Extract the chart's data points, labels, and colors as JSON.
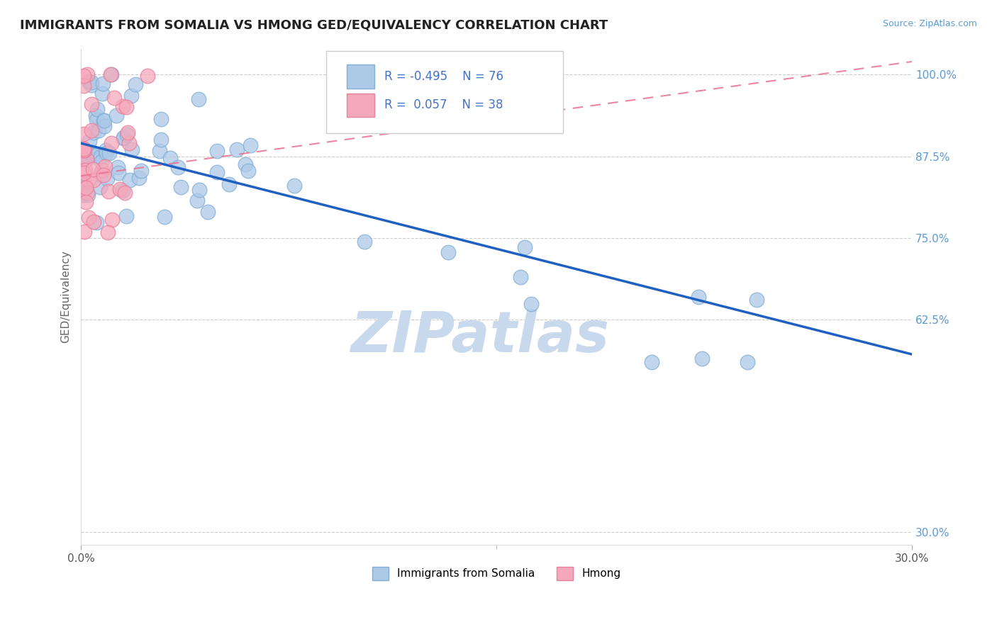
{
  "title": "IMMIGRANTS FROM SOMALIA VS HMONG GED/EQUIVALENCY CORRELATION CHART",
  "source": "Source: ZipAtlas.com",
  "ylabel": "GED/Equivalency",
  "xlim": [
    0.0,
    0.3
  ],
  "ylim": [
    0.28,
    1.04
  ],
  "yticks": [
    0.3,
    0.625,
    0.75,
    0.875,
    1.0
  ],
  "yticklabels": [
    "30.0%",
    "62.5%",
    "75.0%",
    "87.5%",
    "100.0%"
  ],
  "somalia_color": "#adc9e8",
  "hmong_color": "#f5a8bb",
  "somalia_edge": "#82aed4",
  "hmong_edge": "#e8809a",
  "trendline_somalia_color": "#2060c0",
  "trendline_hmong_color": "#e87090",
  "trendline_somalia_x0": 0.0,
  "trendline_somalia_y0": 0.895,
  "trendline_somalia_x1": 0.3,
  "trendline_somalia_y1": 0.572,
  "trendline_hmong_x0": 0.0,
  "trendline_hmong_y0": 0.845,
  "trendline_hmong_x1": 0.3,
  "trendline_hmong_y1": 1.02,
  "legend_R_somalia": "-0.495",
  "legend_N_somalia": "76",
  "legend_R_hmong": "0.057",
  "legend_N_hmong": "38",
  "watermark": "ZIPatlas",
  "watermark_color": "#c8d8ed",
  "background_color": "#ffffff",
  "grid_color": "#cccccc",
  "title_fontsize": 13,
  "axis_fontsize": 11,
  "tick_fontsize": 11,
  "tick_color": "#5b9bd5",
  "legend_text_color": "#4472c4"
}
